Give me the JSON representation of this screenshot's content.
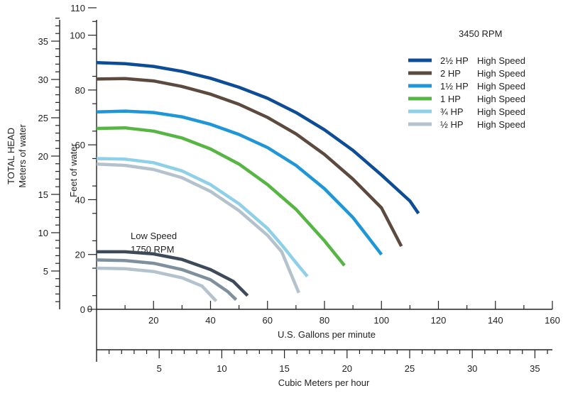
{
  "chart_data": {
    "type": "line",
    "speed_label": "3450 RPM",
    "low_speed_label_line1": "Low Speed",
    "low_speed_label_line2": "1750 RPM",
    "xlabel": "U.S. Gallons per minute",
    "x2label": "Cubic Meters per hour",
    "ylabel": "Feet of water",
    "y2label_line1": "TOTAL HEAD",
    "y2label_line2": "Meters of water",
    "xlim": [
      0,
      160
    ],
    "ylim": [
      0,
      115
    ],
    "x_ticks": [
      20,
      40,
      60,
      80,
      100,
      120,
      140,
      160
    ],
    "x_tick_labels": [
      "20",
      "40",
      "60",
      "80",
      "100",
      "120",
      "140",
      "160"
    ],
    "y_ticks": [
      0,
      20,
      40,
      60,
      80,
      100,
      110
    ],
    "y_tick_labels": [
      "0",
      "20",
      "40",
      "60",
      "80",
      "100",
      "110"
    ],
    "m3h_ticks": [
      5,
      10,
      15,
      20,
      25,
      30,
      35
    ],
    "m3h_tick_labels": [
      "5",
      "10",
      "15",
      "20",
      "25",
      "30",
      "35"
    ],
    "meters_ticks": [
      5,
      10,
      15,
      20,
      25,
      30,
      35
    ],
    "meters_tick_labels": [
      "5",
      "10",
      "15",
      "20",
      "25",
      "30",
      "35"
    ],
    "series": [
      {
        "name": "2½ HP",
        "speed": "High Speed",
        "color": "#0d4c96",
        "x": [
          0,
          10,
          20,
          30,
          40,
          50,
          60,
          70,
          80,
          90,
          100,
          110,
          113
        ],
        "y": [
          90,
          89.6,
          88.6,
          86.8,
          84.3,
          81,
          77,
          71.8,
          65.5,
          58,
          49,
          39.5,
          35
        ]
      },
      {
        "name": "2 HP",
        "speed": "High Speed",
        "color": "#5c4a3f",
        "x": [
          0,
          10,
          20,
          30,
          40,
          50,
          60,
          70,
          80,
          90,
          100,
          107
        ],
        "y": [
          84,
          84.2,
          83.3,
          81.3,
          78.5,
          74.8,
          70,
          64,
          56.5,
          47.5,
          37,
          23
        ]
      },
      {
        "name": "1½ HP",
        "speed": "High Speed",
        "color": "#1e96d8",
        "x": [
          0,
          10,
          20,
          30,
          40,
          50,
          60,
          70,
          80,
          90,
          100
        ],
        "y": [
          72,
          72.3,
          71.8,
          70.2,
          67.5,
          63.8,
          59,
          52.5,
          44,
          33.5,
          20
        ]
      },
      {
        "name": "1 HP",
        "speed": "High Speed",
        "color": "#57b544",
        "x": [
          0,
          10,
          20,
          30,
          40,
          50,
          60,
          70,
          80,
          87
        ],
        "y": [
          66,
          66.2,
          65,
          62.5,
          58.5,
          53,
          45.5,
          36.5,
          25,
          16
        ]
      },
      {
        "name": "¾ HP",
        "speed": "High Speed",
        "color": "#8ed0e8",
        "x": [
          0,
          10,
          20,
          30,
          40,
          50,
          60,
          65,
          70,
          74
        ],
        "y": [
          55,
          54.8,
          53.5,
          50.5,
          45.5,
          38.5,
          29.5,
          23.5,
          17,
          12
        ]
      },
      {
        "name": "½ HP",
        "speed": "High Speed",
        "color": "#b3c2cc",
        "x": [
          0,
          10,
          20,
          30,
          40,
          50,
          60,
          65,
          71
        ],
        "y": [
          53,
          52.5,
          51,
          48,
          43,
          36,
          27,
          21,
          6
        ]
      }
    ],
    "low_speed_series": [
      {
        "color": "#3d4a5a",
        "x": [
          0,
          10,
          20,
          30,
          40,
          48,
          53
        ],
        "y": [
          21,
          21,
          20.2,
          18.2,
          14.5,
          10.2,
          5
        ]
      },
      {
        "color": "#7e8f9e",
        "x": [
          0,
          10,
          20,
          30,
          40,
          46,
          49
        ],
        "y": [
          18,
          17.8,
          16.8,
          14.5,
          10.8,
          6.5,
          3.5
        ]
      },
      {
        "color": "#b3c2cc",
        "x": [
          0,
          10,
          20,
          30,
          37,
          42
        ],
        "y": [
          15,
          14.8,
          13.8,
          11.5,
          8.5,
          3
        ]
      }
    ]
  }
}
